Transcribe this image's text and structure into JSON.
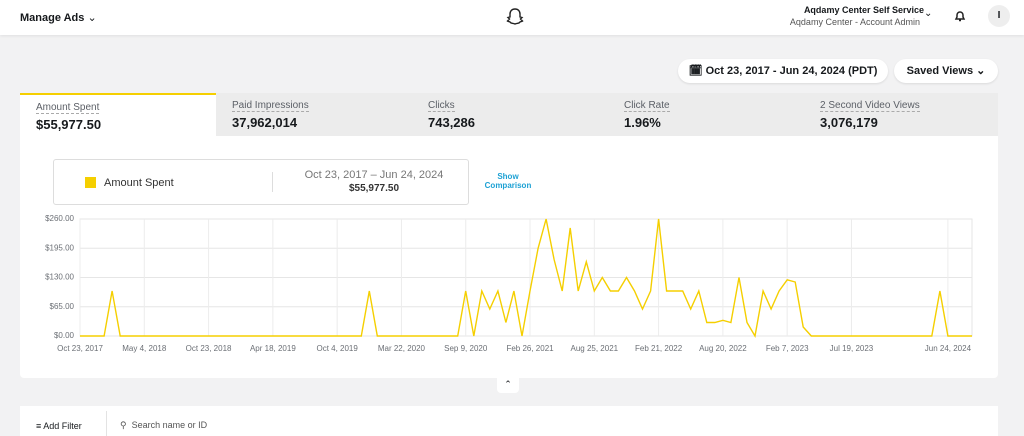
{
  "header": {
    "menu": "Manage Ads",
    "account_name": "Aqdamy Center Self Service",
    "account_role": "Aqdamy Center - Account Admin",
    "avatar": "I"
  },
  "toolbar": {
    "date_range": "Oct 23, 2017 - Jun 24, 2024 (PDT)",
    "saved_views": "Saved Views"
  },
  "metrics": [
    {
      "label": "Amount Spent",
      "value": "$55,977.50"
    },
    {
      "label": "Paid Impressions",
      "value": "37,962,014"
    },
    {
      "label": "Clicks",
      "value": "743,286"
    },
    {
      "label": "Click Rate",
      "value": "1.96%"
    },
    {
      "label": "2 Second Video Views",
      "value": "3,076,179"
    }
  ],
  "legend": {
    "date_range": "Oct 23, 2017 – Jun 24, 2024",
    "total": "$55,977.50",
    "comparison": "Show Comparison"
  },
  "chart_data": {
    "type": "line",
    "categories": [
      "Oct 23, 2017",
      null,
      null,
      null,
      null,
      null,
      null,
      null,
      "May 4, 2018",
      null,
      null,
      null,
      null,
      null,
      null,
      null,
      "Oct 23, 2018",
      null,
      null,
      null,
      null,
      null,
      null,
      null,
      "Apr 18, 2019",
      null,
      null,
      null,
      null,
      null,
      null,
      null,
      "Oct 4, 2019",
      null,
      null,
      null,
      null,
      null,
      null,
      null,
      "Mar 22, 2020",
      null,
      null,
      null,
      null,
      null,
      null,
      null,
      "Sep 9, 2020",
      null,
      null,
      null,
      null,
      null,
      null,
      null,
      "Feb 26, 2021",
      null,
      null,
      null,
      null,
      null,
      null,
      null,
      "Aug 25, 2021",
      null,
      null,
      null,
      null,
      null,
      null,
      null,
      "Feb 21, 2022",
      null,
      null,
      null,
      null,
      null,
      null,
      null,
      "Aug 20, 2022",
      null,
      null,
      null,
      null,
      null,
      null,
      null,
      "Feb 7, 2023",
      null,
      null,
      null,
      null,
      null,
      null,
      null,
      "Jul 19, 2023",
      null,
      null,
      null,
      null,
      null,
      null,
      null,
      null,
      null,
      null,
      null,
      "Jun 24, 2024",
      null,
      null,
      null
    ],
    "series": [
      {
        "name": "Amount Spent",
        "color": "#f5cf00",
        "values": [
          0,
          0,
          0,
          0,
          100,
          0,
          0,
          0,
          0,
          0,
          0,
          0,
          0,
          0,
          0,
          0,
          0,
          0,
          0,
          0,
          0,
          0,
          0,
          0,
          0,
          0,
          0,
          0,
          0,
          0,
          0,
          0,
          0,
          0,
          0,
          0,
          100,
          0,
          0,
          0,
          0,
          0,
          0,
          0,
          0,
          0,
          0,
          0,
          100,
          0,
          100,
          60,
          100,
          30,
          100,
          0,
          100,
          195,
          260,
          170,
          100,
          240,
          100,
          165,
          100,
          130,
          100,
          100,
          130,
          100,
          60,
          100,
          260,
          100,
          100,
          100,
          60,
          100,
          30,
          30,
          35,
          30,
          130,
          30,
          0,
          100,
          60,
          100,
          125,
          120,
          20,
          0,
          0,
          0,
          0,
          0,
          0,
          0,
          0,
          0,
          0,
          0,
          0,
          0,
          0,
          0,
          0,
          100,
          0,
          0,
          0,
          0
        ]
      }
    ],
    "ylim": [
      0,
      260
    ],
    "yticks": [
      {
        "value": 0,
        "label": "$0.00"
      },
      {
        "value": 65,
        "label": "$65.00"
      },
      {
        "value": 130,
        "label": "$130.00"
      },
      {
        "value": 195,
        "label": "$195.00"
      },
      {
        "value": 260,
        "label": "$260.00"
      }
    ],
    "grid": true
  },
  "filters": {
    "add_filter": "Add Filter",
    "search_placeholder": "Search name or ID"
  }
}
